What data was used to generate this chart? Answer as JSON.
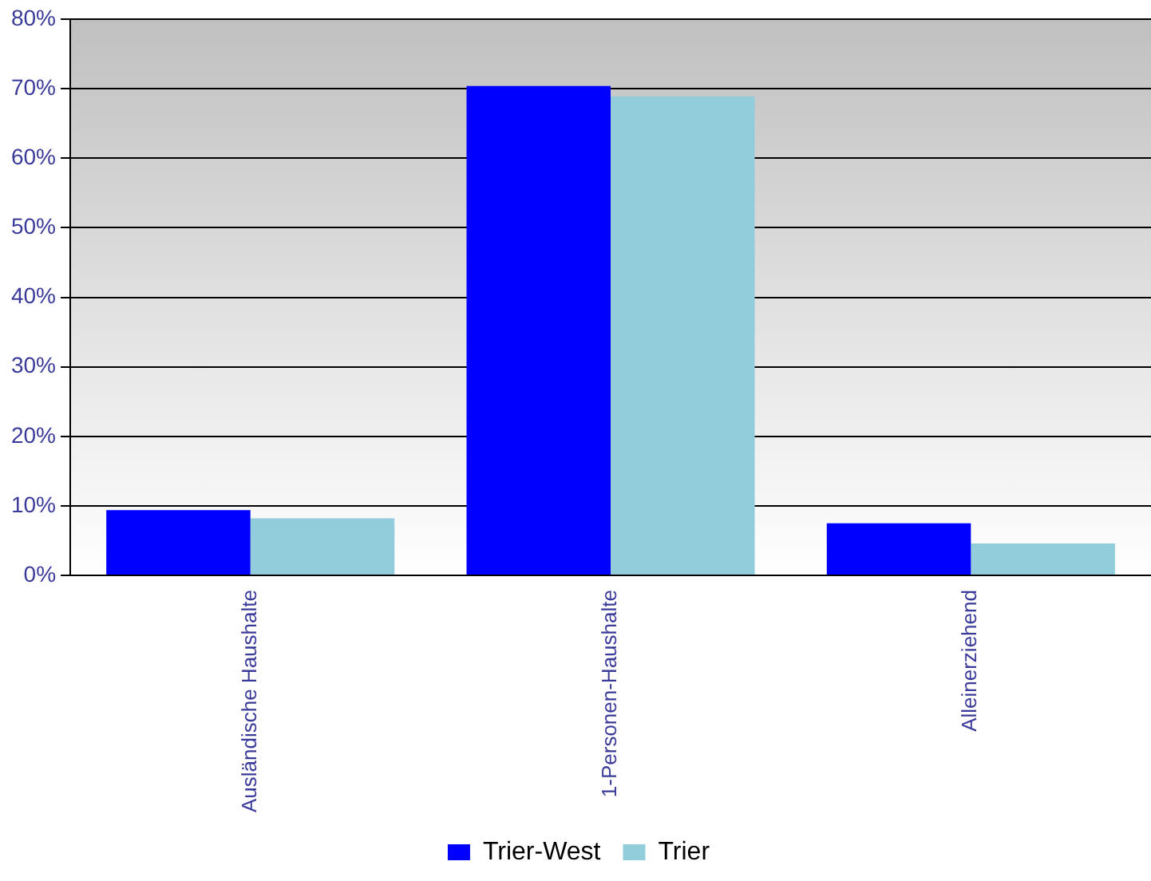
{
  "chart_data": {
    "type": "bar",
    "categories": [
      "Ausländische Haushalte",
      "1-Personen-Haushalte",
      "Alleinerziehend"
    ],
    "series": [
      {
        "name": "Trier-West",
        "color": "#0000ff",
        "values": [
          9.4,
          70.4,
          7.5
        ]
      },
      {
        "name": "Trier",
        "color": "#92cddc",
        "values": [
          8.2,
          68.9,
          4.6
        ]
      }
    ],
    "ylim": [
      0,
      80
    ],
    "yticks": [
      {
        "value": 0,
        "label": "0%"
      },
      {
        "value": 10,
        "label": "10%"
      },
      {
        "value": 20,
        "label": "20%"
      },
      {
        "value": 30,
        "label": "30%"
      },
      {
        "value": 40,
        "label": "40%"
      },
      {
        "value": 50,
        "label": "50%"
      },
      {
        "value": 60,
        "label": "60%"
      },
      {
        "value": 70,
        "label": "70%"
      },
      {
        "value": 80,
        "label": "80%"
      }
    ],
    "grid": "y",
    "legend": "bottom"
  }
}
